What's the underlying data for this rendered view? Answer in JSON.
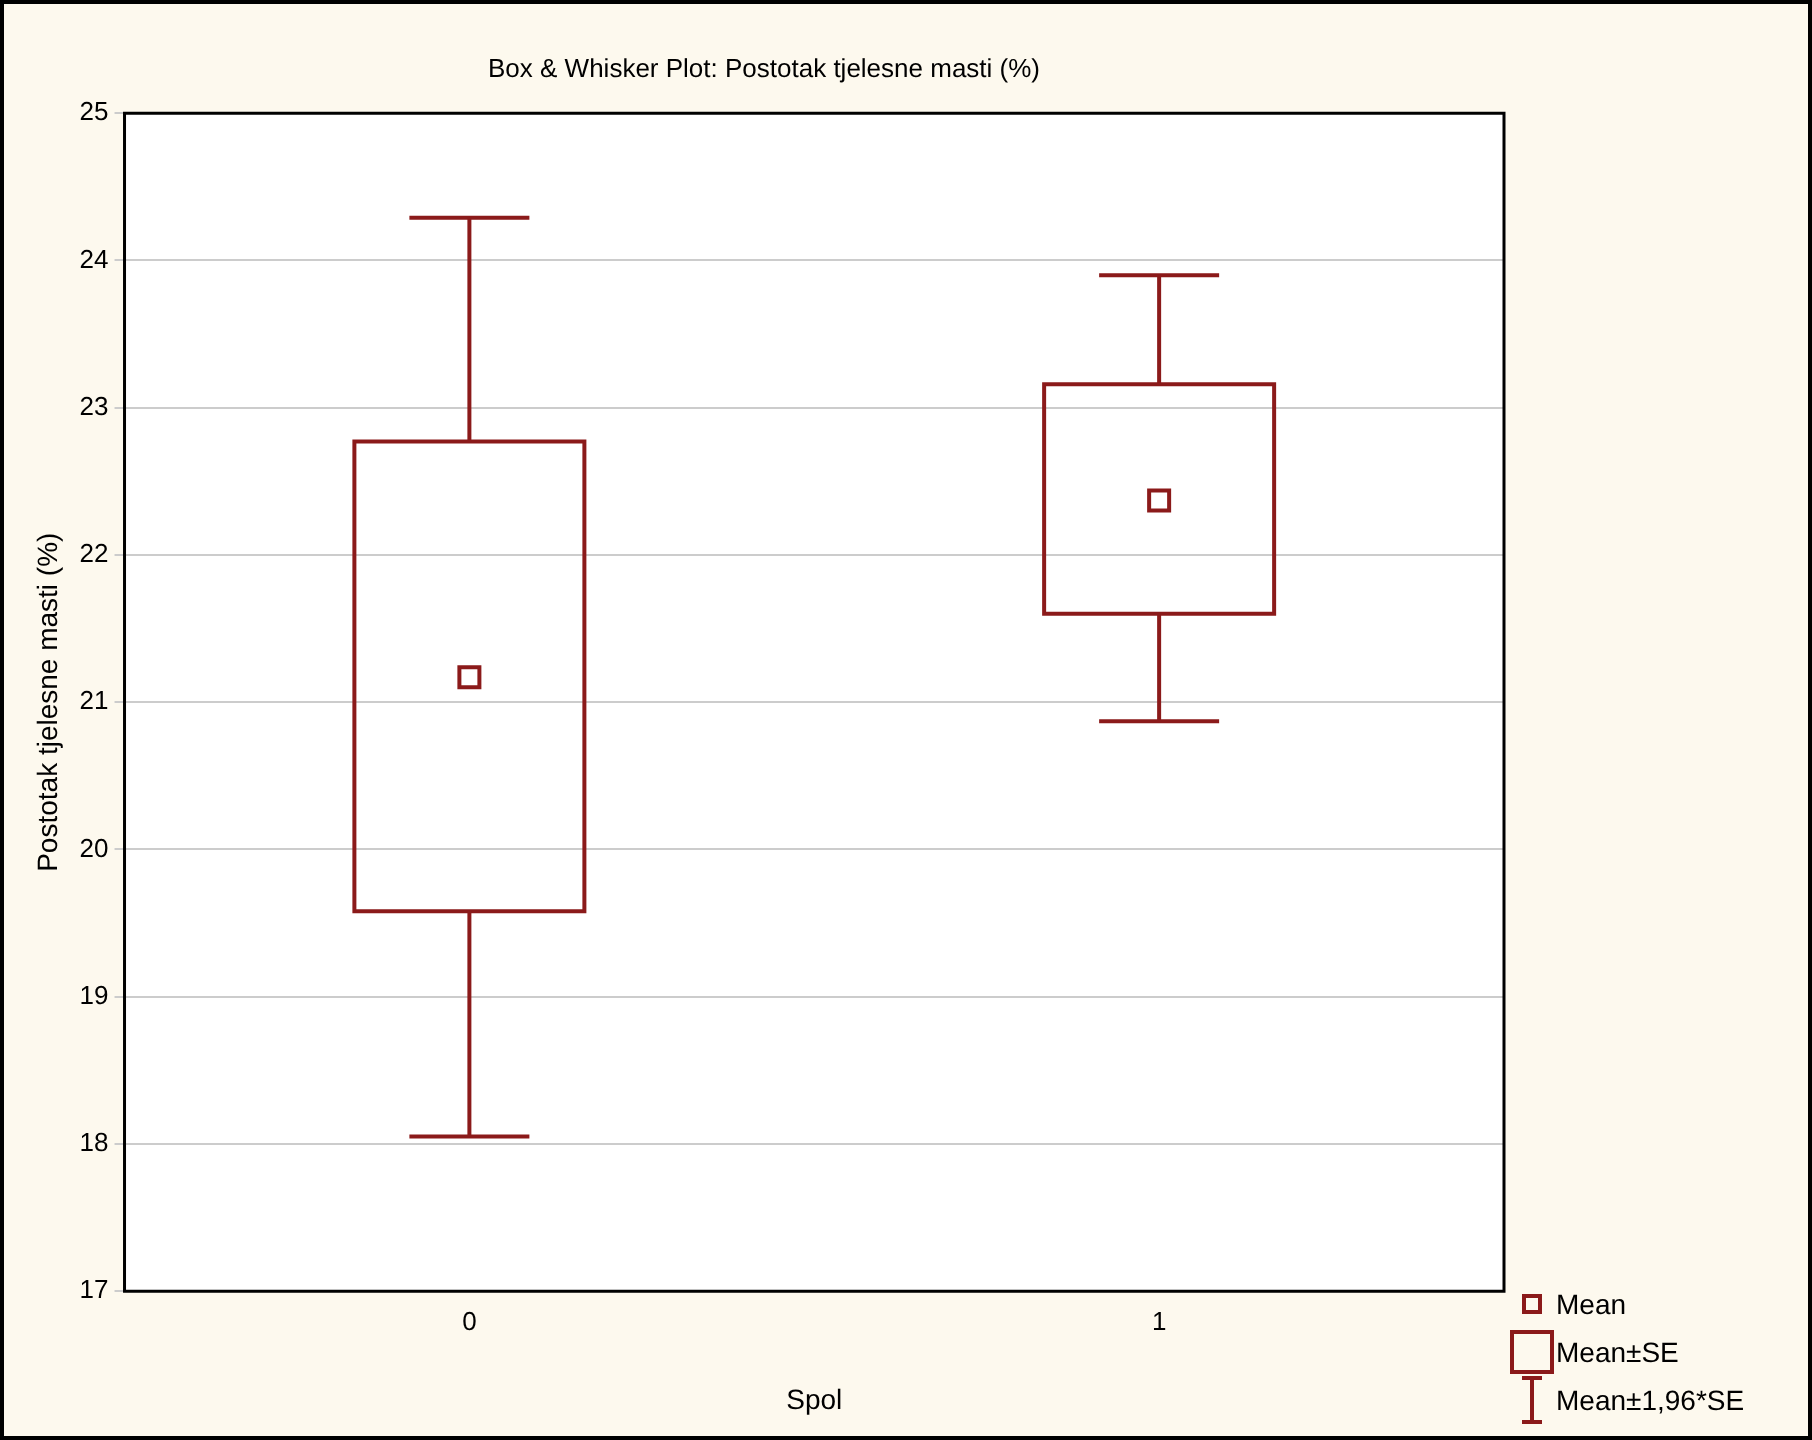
{
  "chart_data": {
    "type": "box",
    "title": "Box & Whisker Plot: Postotak tjelesne masti (%)",
    "xlabel": "Spol",
    "ylabel": "Postotak tjelesne masti (%)",
    "categories": [
      "0",
      "1"
    ],
    "series": [
      {
        "color": "#8b1a1a",
        "boxes": [
          {
            "low": 18.05,
            "q1": 19.58,
            "median": 21.17,
            "q3": 22.77,
            "high": 24.29
          },
          {
            "low": 20.87,
            "q1": 21.6,
            "median": 22.37,
            "q3": 23.16,
            "high": 23.9
          }
        ]
      }
    ],
    "ylim": [
      17,
      25
    ],
    "yticks": [
      17,
      18,
      19,
      20,
      21,
      22,
      23,
      24,
      25
    ],
    "grid": "y",
    "annotations": [
      "Mean",
      "Mean±SE",
      "Mean±1,96*SE"
    ]
  }
}
